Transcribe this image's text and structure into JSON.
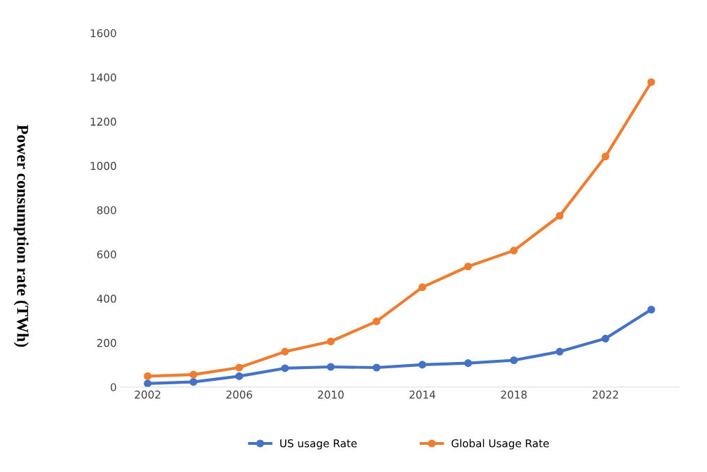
{
  "chart_data": {
    "type": "line",
    "ylabel": "Power consumption rate (TWh)",
    "x": [
      2002,
      2004,
      2006,
      2008,
      2010,
      2012,
      2014,
      2016,
      2018,
      2020,
      2022,
      2024
    ],
    "series": [
      {
        "name": "US usage Rate",
        "color": "#4472c4",
        "values": [
          16,
          23,
          49,
          85,
          91,
          88,
          101,
          108,
          121,
          160,
          219,
          350
        ]
      },
      {
        "name": "Global Usage Rate",
        "color": "#ed7d31",
        "values": [
          49,
          56,
          88,
          160,
          206,
          297,
          451,
          545,
          617,
          774,
          1042,
          1378
        ]
      }
    ],
    "xlim": [
      2000.8,
      2025.2
    ],
    "xticks": [
      2002,
      2006,
      2010,
      2014,
      2018,
      2022
    ],
    "ylim": [
      0,
      1600
    ],
    "yticks": [
      0,
      200,
      400,
      600,
      800,
      1000,
      1200,
      1400,
      1600
    ],
    "grid": false,
    "legend": "bottom",
    "marker": "circle",
    "line_style": "solid"
  }
}
